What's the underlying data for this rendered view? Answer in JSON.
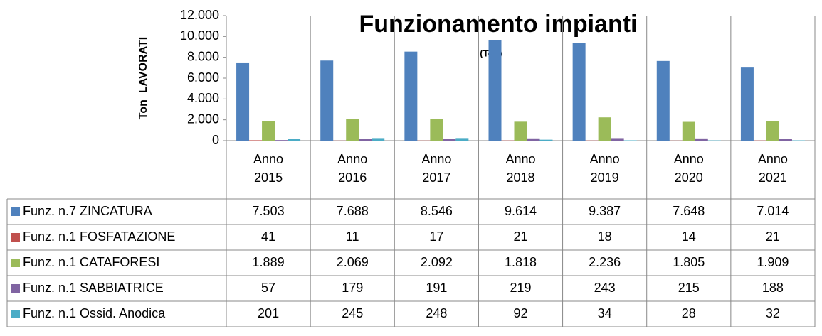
{
  "chart_data": {
    "type": "bar",
    "title": "Funzionamento impianti",
    "subtitle": "(Ton)",
    "y_label": "Ton  LAVORATI",
    "categories": [
      "Anno 2015",
      "Anno 2016",
      "Anno 2017",
      "Anno 2018",
      "Anno 2019",
      "Anno 2020",
      "Anno 2021"
    ],
    "series": [
      {
        "name": "Funz. n.7 ZINCATURA",
        "color": "#4f81bd",
        "values": [
          7503,
          7688,
          8546,
          9614,
          9387,
          7648,
          7014
        ],
        "value_labels": [
          "7.503",
          "7.688",
          "8.546",
          "9.614",
          "9.387",
          "7.648",
          "7.014"
        ]
      },
      {
        "name": "Funz. n.1 FOSFATAZIONE",
        "color": "#c0504d",
        "values": [
          41,
          11,
          17,
          21,
          18,
          14,
          21
        ]
      },
      {
        "name": "Funz. n.1 CATAFORESI",
        "color": "#9bbb59",
        "values": [
          1889,
          2069,
          2092,
          1818,
          2236,
          1805,
          1909
        ],
        "value_labels": [
          "1.889",
          "2.069",
          "2.092",
          "1.818",
          "2.236",
          "1.805",
          "1.909"
        ]
      },
      {
        "name": "Funz. n.1 SABBIATRICE",
        "color": "#8064a2",
        "values": [
          57,
          179,
          191,
          219,
          243,
          215,
          188
        ]
      },
      {
        "name": "Funz. n.1 Ossid. Anodica",
        "color": "#4bacc6",
        "values": [
          201,
          245,
          248,
          92,
          34,
          28,
          32
        ]
      }
    ],
    "ylim": [
      0,
      12000
    ],
    "yticks": [
      0,
      {
        "value": 2000,
        "label": "2.000"
      },
      {
        "value": 4000,
        "label": "4.000"
      },
      {
        "value": 6000,
        "label": "6.000"
      },
      {
        "value": 8000,
        "label": "8.000"
      },
      {
        "value": 10000,
        "label": "10.000"
      },
      {
        "value": 12000,
        "label": "12.000"
      }
    ]
  }
}
